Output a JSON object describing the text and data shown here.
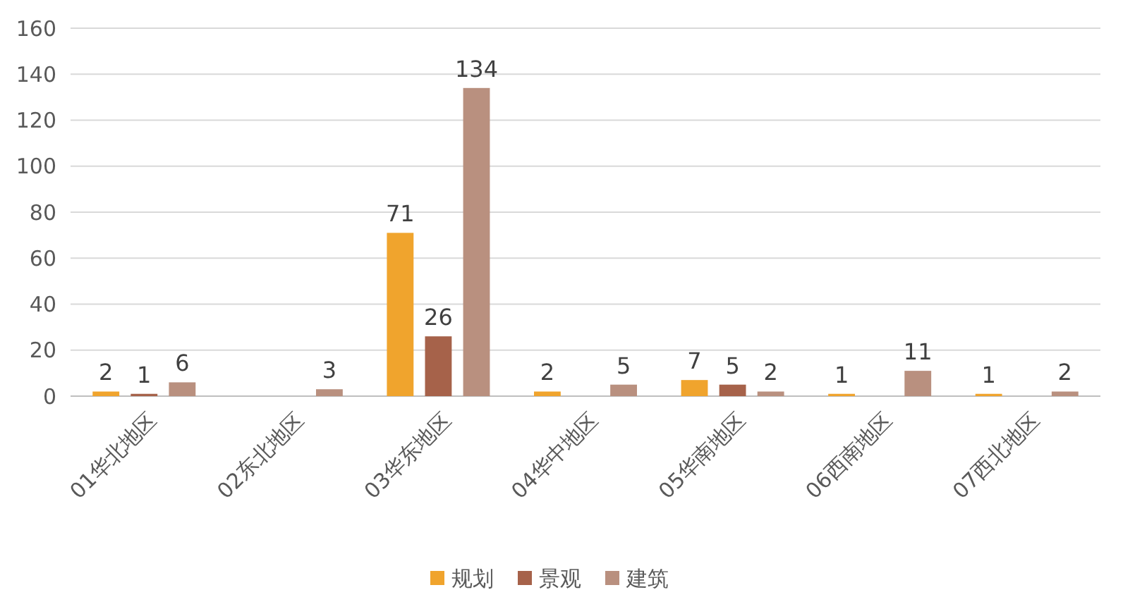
{
  "chart_data": {
    "type": "bar",
    "categories": [
      "01华北地区",
      "02东北地区",
      "03华东地区",
      "04华中地区",
      "05华南地区",
      "06西南地区",
      "07西北地区"
    ],
    "series": [
      {
        "name": "规划",
        "color": "#f0a42d",
        "values": [
          2,
          null,
          71,
          2,
          7,
          1,
          1
        ]
      },
      {
        "name": "景观",
        "color": "#a6624a",
        "values": [
          1,
          null,
          26,
          null,
          5,
          null,
          null
        ]
      },
      {
        "name": "建筑",
        "color": "#b9907f",
        "values": [
          6,
          3,
          134,
          5,
          2,
          11,
          2
        ]
      }
    ],
    "ylim": [
      0,
      160
    ],
    "yticks": [
      0,
      20,
      40,
      60,
      80,
      100,
      120,
      140,
      160
    ],
    "grid": "y",
    "legend": "bottom",
    "data_labels": true
  }
}
